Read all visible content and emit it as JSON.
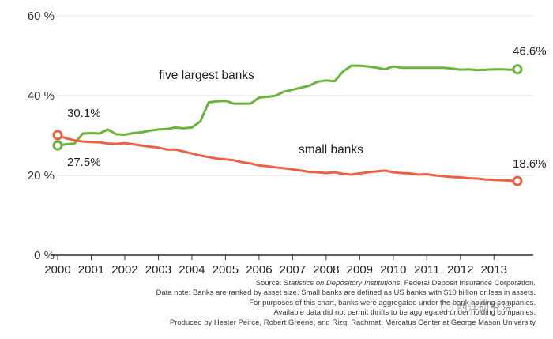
{
  "chart_data": {
    "type": "line",
    "title": "",
    "xlabel": "",
    "ylabel": "",
    "xlim": [
      2000,
      2013.7
    ],
    "ylim": [
      0,
      60
    ],
    "x_ticks": [
      "2000",
      "2001",
      "2002",
      "2003",
      "2004",
      "2005",
      "2006",
      "2007",
      "2008",
      "2009",
      "2010",
      "2011",
      "2012",
      "2013"
    ],
    "y_ticks": [
      {
        "value": 0,
        "label": "0 %"
      },
      {
        "value": 20,
        "label": "20 %"
      },
      {
        "value": 40,
        "label": "40 %"
      },
      {
        "value": 60,
        "label": "60 %"
      }
    ],
    "grid": "horizontal",
    "series": [
      {
        "name": "five largest banks",
        "color": "#6bb33c",
        "x": [
          2000.0,
          2000.25,
          2000.5,
          2000.75,
          2001.0,
          2001.25,
          2001.5,
          2001.75,
          2002.0,
          2002.25,
          2002.5,
          2002.75,
          2003.0,
          2003.25,
          2003.5,
          2003.75,
          2004.0,
          2004.25,
          2004.5,
          2004.75,
          2005.0,
          2005.25,
          2005.5,
          2005.75,
          2006.0,
          2006.25,
          2006.5,
          2006.75,
          2007.0,
          2007.25,
          2007.5,
          2007.75,
          2008.0,
          2008.25,
          2008.5,
          2008.75,
          2009.0,
          2009.25,
          2009.5,
          2009.75,
          2010.0,
          2010.25,
          2010.5,
          2010.75,
          2011.0,
          2011.25,
          2011.5,
          2011.75,
          2012.0,
          2012.25,
          2012.5,
          2012.75,
          2013.0,
          2013.25,
          2013.5,
          2013.7
        ],
        "values": [
          27.5,
          27.8,
          28.0,
          30.5,
          30.6,
          30.5,
          31.5,
          30.3,
          30.2,
          30.6,
          30.8,
          31.2,
          31.5,
          31.6,
          32.0,
          31.8,
          32.0,
          33.5,
          38.3,
          38.6,
          38.7,
          38.0,
          38.0,
          38.0,
          39.5,
          39.7,
          40.0,
          41.0,
          41.5,
          42.0,
          42.5,
          43.5,
          43.8,
          43.6,
          46.0,
          47.5,
          47.5,
          47.3,
          47.0,
          46.6,
          47.3,
          47.0,
          47.0,
          47.0,
          47.0,
          47.0,
          47.0,
          46.8,
          46.5,
          46.6,
          46.4,
          46.5,
          46.6,
          46.6,
          46.5,
          46.6
        ]
      },
      {
        "name": "small banks",
        "color": "#ec6144",
        "x": [
          2000.0,
          2000.25,
          2000.5,
          2000.75,
          2001.0,
          2001.25,
          2001.5,
          2001.75,
          2002.0,
          2002.25,
          2002.5,
          2002.75,
          2003.0,
          2003.25,
          2003.5,
          2003.75,
          2004.0,
          2004.25,
          2004.5,
          2004.75,
          2005.0,
          2005.25,
          2005.5,
          2005.75,
          2006.0,
          2006.25,
          2006.5,
          2006.75,
          2007.0,
          2007.25,
          2007.5,
          2007.75,
          2008.0,
          2008.25,
          2008.5,
          2008.75,
          2009.0,
          2009.25,
          2009.5,
          2009.75,
          2010.0,
          2010.25,
          2010.5,
          2010.75,
          2011.0,
          2011.25,
          2011.5,
          2011.75,
          2012.0,
          2012.25,
          2012.5,
          2012.75,
          2013.0,
          2013.25,
          2013.5,
          2013.7
        ],
        "values": [
          30.1,
          29.3,
          28.8,
          28.5,
          28.4,
          28.3,
          28.0,
          27.9,
          28.1,
          27.8,
          27.5,
          27.2,
          27.0,
          26.5,
          26.5,
          26.0,
          25.5,
          25.0,
          24.6,
          24.2,
          24.0,
          23.8,
          23.3,
          23.0,
          22.5,
          22.3,
          22.0,
          21.8,
          21.5,
          21.2,
          20.9,
          20.8,
          20.6,
          20.8,
          20.4,
          20.2,
          20.5,
          20.8,
          21.0,
          21.2,
          20.8,
          20.6,
          20.5,
          20.2,
          20.3,
          20.0,
          19.8,
          19.6,
          19.5,
          19.3,
          19.2,
          19.0,
          18.9,
          18.8,
          18.7,
          18.6
        ]
      }
    ],
    "annotations": [
      {
        "text": "30.1%",
        "series": "small banks",
        "x": 2000.0,
        "y": 30.1
      },
      {
        "text": "27.5%",
        "series": "five largest banks",
        "x": 2000.0,
        "y": 27.5
      },
      {
        "text": "46.6%",
        "series": "five largest banks",
        "x": 2013.7,
        "y": 46.6
      },
      {
        "text": "18.6%",
        "series": "small banks",
        "x": 2013.7,
        "y": 18.6
      }
    ],
    "series_labels": [
      {
        "text": "five largest banks",
        "series": "five largest banks"
      },
      {
        "text": "small banks",
        "series": "small banks"
      }
    ]
  },
  "notes": {
    "source_prefix": "Source: ",
    "source_title": "Statistics on Depository Institutions",
    "source_suffix": ", Federal Deposit Insurance Corporation.",
    "line2": "Data note: Banks are ranked by asset size. Small banks are defined as US banks with $10 billion or less in assets.",
    "line3": "For purposes of this chart, banks were aggregated under the bank holding companies.",
    "line4": "Available data did not permit thrifts to be aggregated under holding companies.",
    "line5": "Produced by Hester Peirce, Robert Greene, and Rizqi Rachmat, Mercatus Center at George Mason University"
  },
  "watermark": {
    "text": "西洋研究院"
  }
}
